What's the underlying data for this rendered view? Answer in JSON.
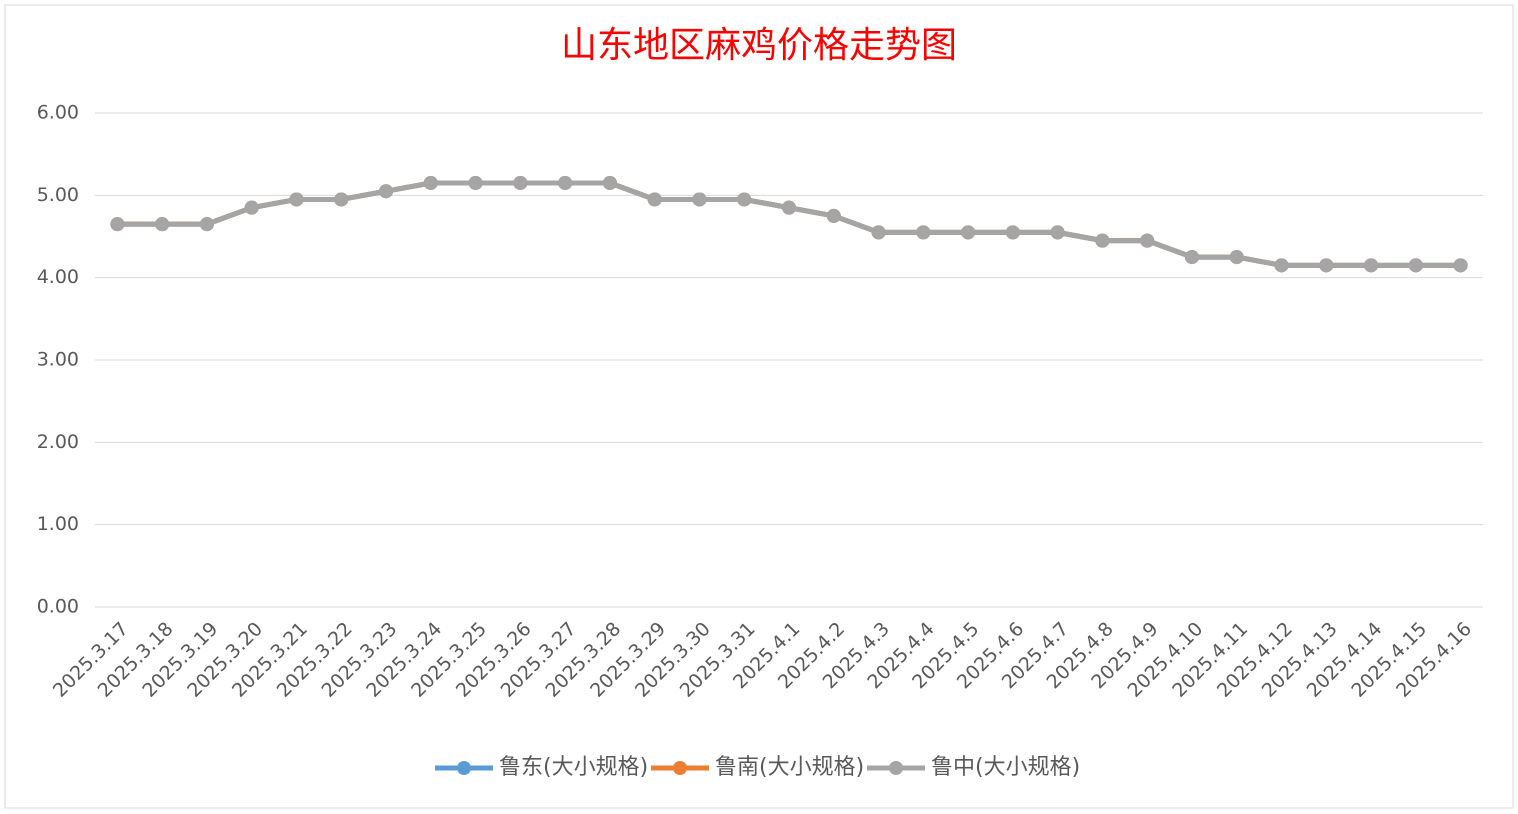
{
  "chart_data": {
    "type": "line",
    "title": "山东地区麻鸡价格走势图",
    "categories": [
      "2025.3.17",
      "2025.3.18",
      "2025.3.19",
      "2025.3.20",
      "2025.3.21",
      "2025.3.22",
      "2025.3.23",
      "2025.3.24",
      "2025.3.25",
      "2025.3.26",
      "2025.3.27",
      "2025.3.28",
      "2025.3.29",
      "2025.3.30",
      "2025.3.31",
      "2025.4.1",
      "2025.4.2",
      "2025.4.3",
      "2025.4.4",
      "2025.4.5",
      "2025.4.6",
      "2025.4.7",
      "2025.4.8",
      "2025.4.9",
      "2025.4.10",
      "2025.4.11",
      "2025.4.12",
      "2025.4.13",
      "2025.4.14",
      "2025.4.15",
      "2025.4.16"
    ],
    "series": [
      {
        "name": "鲁东(大小规格)",
        "color": "#5b9bd5",
        "values": [
          4.65,
          4.65,
          4.65,
          4.85,
          4.95,
          4.95,
          5.05,
          5.15,
          5.15,
          5.15,
          5.15,
          5.15,
          4.95,
          4.95,
          4.95,
          4.85,
          4.75,
          4.55,
          4.55,
          4.55,
          4.55,
          4.55,
          4.45,
          4.45,
          4.25,
          4.25,
          4.15,
          4.15,
          4.15,
          4.15,
          4.15
        ]
      },
      {
        "name": "鲁南(大小规格)",
        "color": "#ed7d31",
        "values": [
          4.65,
          4.65,
          4.65,
          4.85,
          4.95,
          4.95,
          5.05,
          5.15,
          5.15,
          5.15,
          5.15,
          5.15,
          4.95,
          4.95,
          4.95,
          4.85,
          4.75,
          4.55,
          4.55,
          4.55,
          4.55,
          4.55,
          4.45,
          4.45,
          4.25,
          4.25,
          4.15,
          4.15,
          4.15,
          4.15,
          4.15
        ]
      },
      {
        "name": "鲁中(大小规格)",
        "color": "#a5a5a5",
        "values": [
          4.65,
          4.65,
          4.65,
          4.85,
          4.95,
          4.95,
          5.05,
          5.15,
          5.15,
          5.15,
          5.15,
          5.15,
          4.95,
          4.95,
          4.95,
          4.85,
          4.75,
          4.55,
          4.55,
          4.55,
          4.55,
          4.55,
          4.45,
          4.45,
          4.25,
          4.25,
          4.15,
          4.15,
          4.15,
          4.15,
          4.15
        ]
      }
    ],
    "ylim": [
      0,
      6
    ],
    "yticks": [
      {
        "value": 0,
        "label": "0.00"
      },
      {
        "value": 1,
        "label": "1.00"
      },
      {
        "value": 2,
        "label": "2.00"
      },
      {
        "value": 3,
        "label": "3.00"
      },
      {
        "value": 4,
        "label": "4.00"
      },
      {
        "value": 5,
        "label": "5.00"
      },
      {
        "value": 6,
        "label": "6.00"
      }
    ],
    "grid": true,
    "title_color": "#ff0000",
    "legend": "bottom"
  }
}
